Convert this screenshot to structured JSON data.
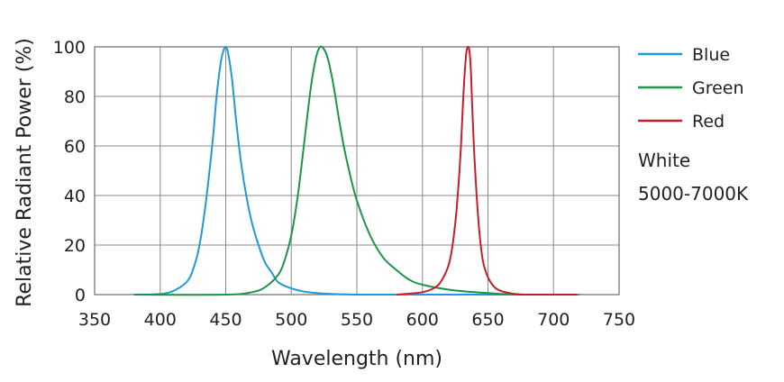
{
  "chart_data": {
    "type": "line",
    "xlabel": "Wavelength (nm)",
    "ylabel": "Relative Radiant Power (%)",
    "xlim": [
      350,
      750
    ],
    "ylim": [
      0,
      100
    ],
    "xticks": [
      350,
      400,
      450,
      500,
      550,
      600,
      650,
      700,
      750
    ],
    "yticks": [
      0,
      20,
      40,
      60,
      80,
      100
    ],
    "grid": true,
    "legend_position": "right",
    "series": [
      {
        "name": "Blue",
        "color": "#1f9ad6",
        "x": [
          380,
          400,
          410,
          420,
          425,
          430,
          435,
          440,
          443,
          446,
          448,
          450,
          452,
          455,
          458,
          462,
          466,
          470,
          475,
          480,
          485,
          490,
          500,
          510,
          520,
          530,
          550,
          580,
          650,
          720
        ],
        "y": [
          0,
          0.3,
          1.5,
          5,
          10,
          20,
          38,
          62,
          80,
          93,
          98,
          100,
          97,
          86,
          70,
          52,
          39,
          29,
          20,
          13,
          9,
          5,
          2.5,
          1.2,
          0.6,
          0.3,
          0,
          0,
          0,
          0
        ]
      },
      {
        "name": "Green",
        "color": "#1e9448",
        "x": [
          380,
          450,
          470,
          480,
          490,
          495,
          500,
          505,
          510,
          515,
          519,
          522,
          525,
          528,
          532,
          536,
          540,
          545,
          550,
          560,
          570,
          580,
          590,
          600,
          620,
          640,
          660,
          680
        ],
        "y": [
          0,
          0,
          1,
          3,
          8,
          14,
          24,
          40,
          62,
          84,
          96,
          100,
          99,
          95,
          85,
          72,
          60,
          48,
          38,
          24,
          15,
          10,
          6,
          4,
          2,
          1,
          0.3,
          0
        ]
      },
      {
        "name": "Red",
        "color": "#c41e2a",
        "x": [
          580,
          600,
          610,
          615,
          620,
          623,
          626,
          629,
          631,
          633,
          634,
          635,
          636,
          637,
          638,
          640,
          643,
          646,
          650,
          655,
          660,
          665,
          670,
          680,
          700,
          718
        ],
        "y": [
          0,
          1,
          3,
          6,
          12,
          20,
          34,
          56,
          78,
          95,
          99,
          100,
          98,
          90,
          76,
          52,
          28,
          14,
          7,
          3,
          1.5,
          0.8,
          0.3,
          0,
          0,
          0
        ]
      }
    ],
    "annotation": [
      "White",
      "5000-7000K"
    ]
  }
}
